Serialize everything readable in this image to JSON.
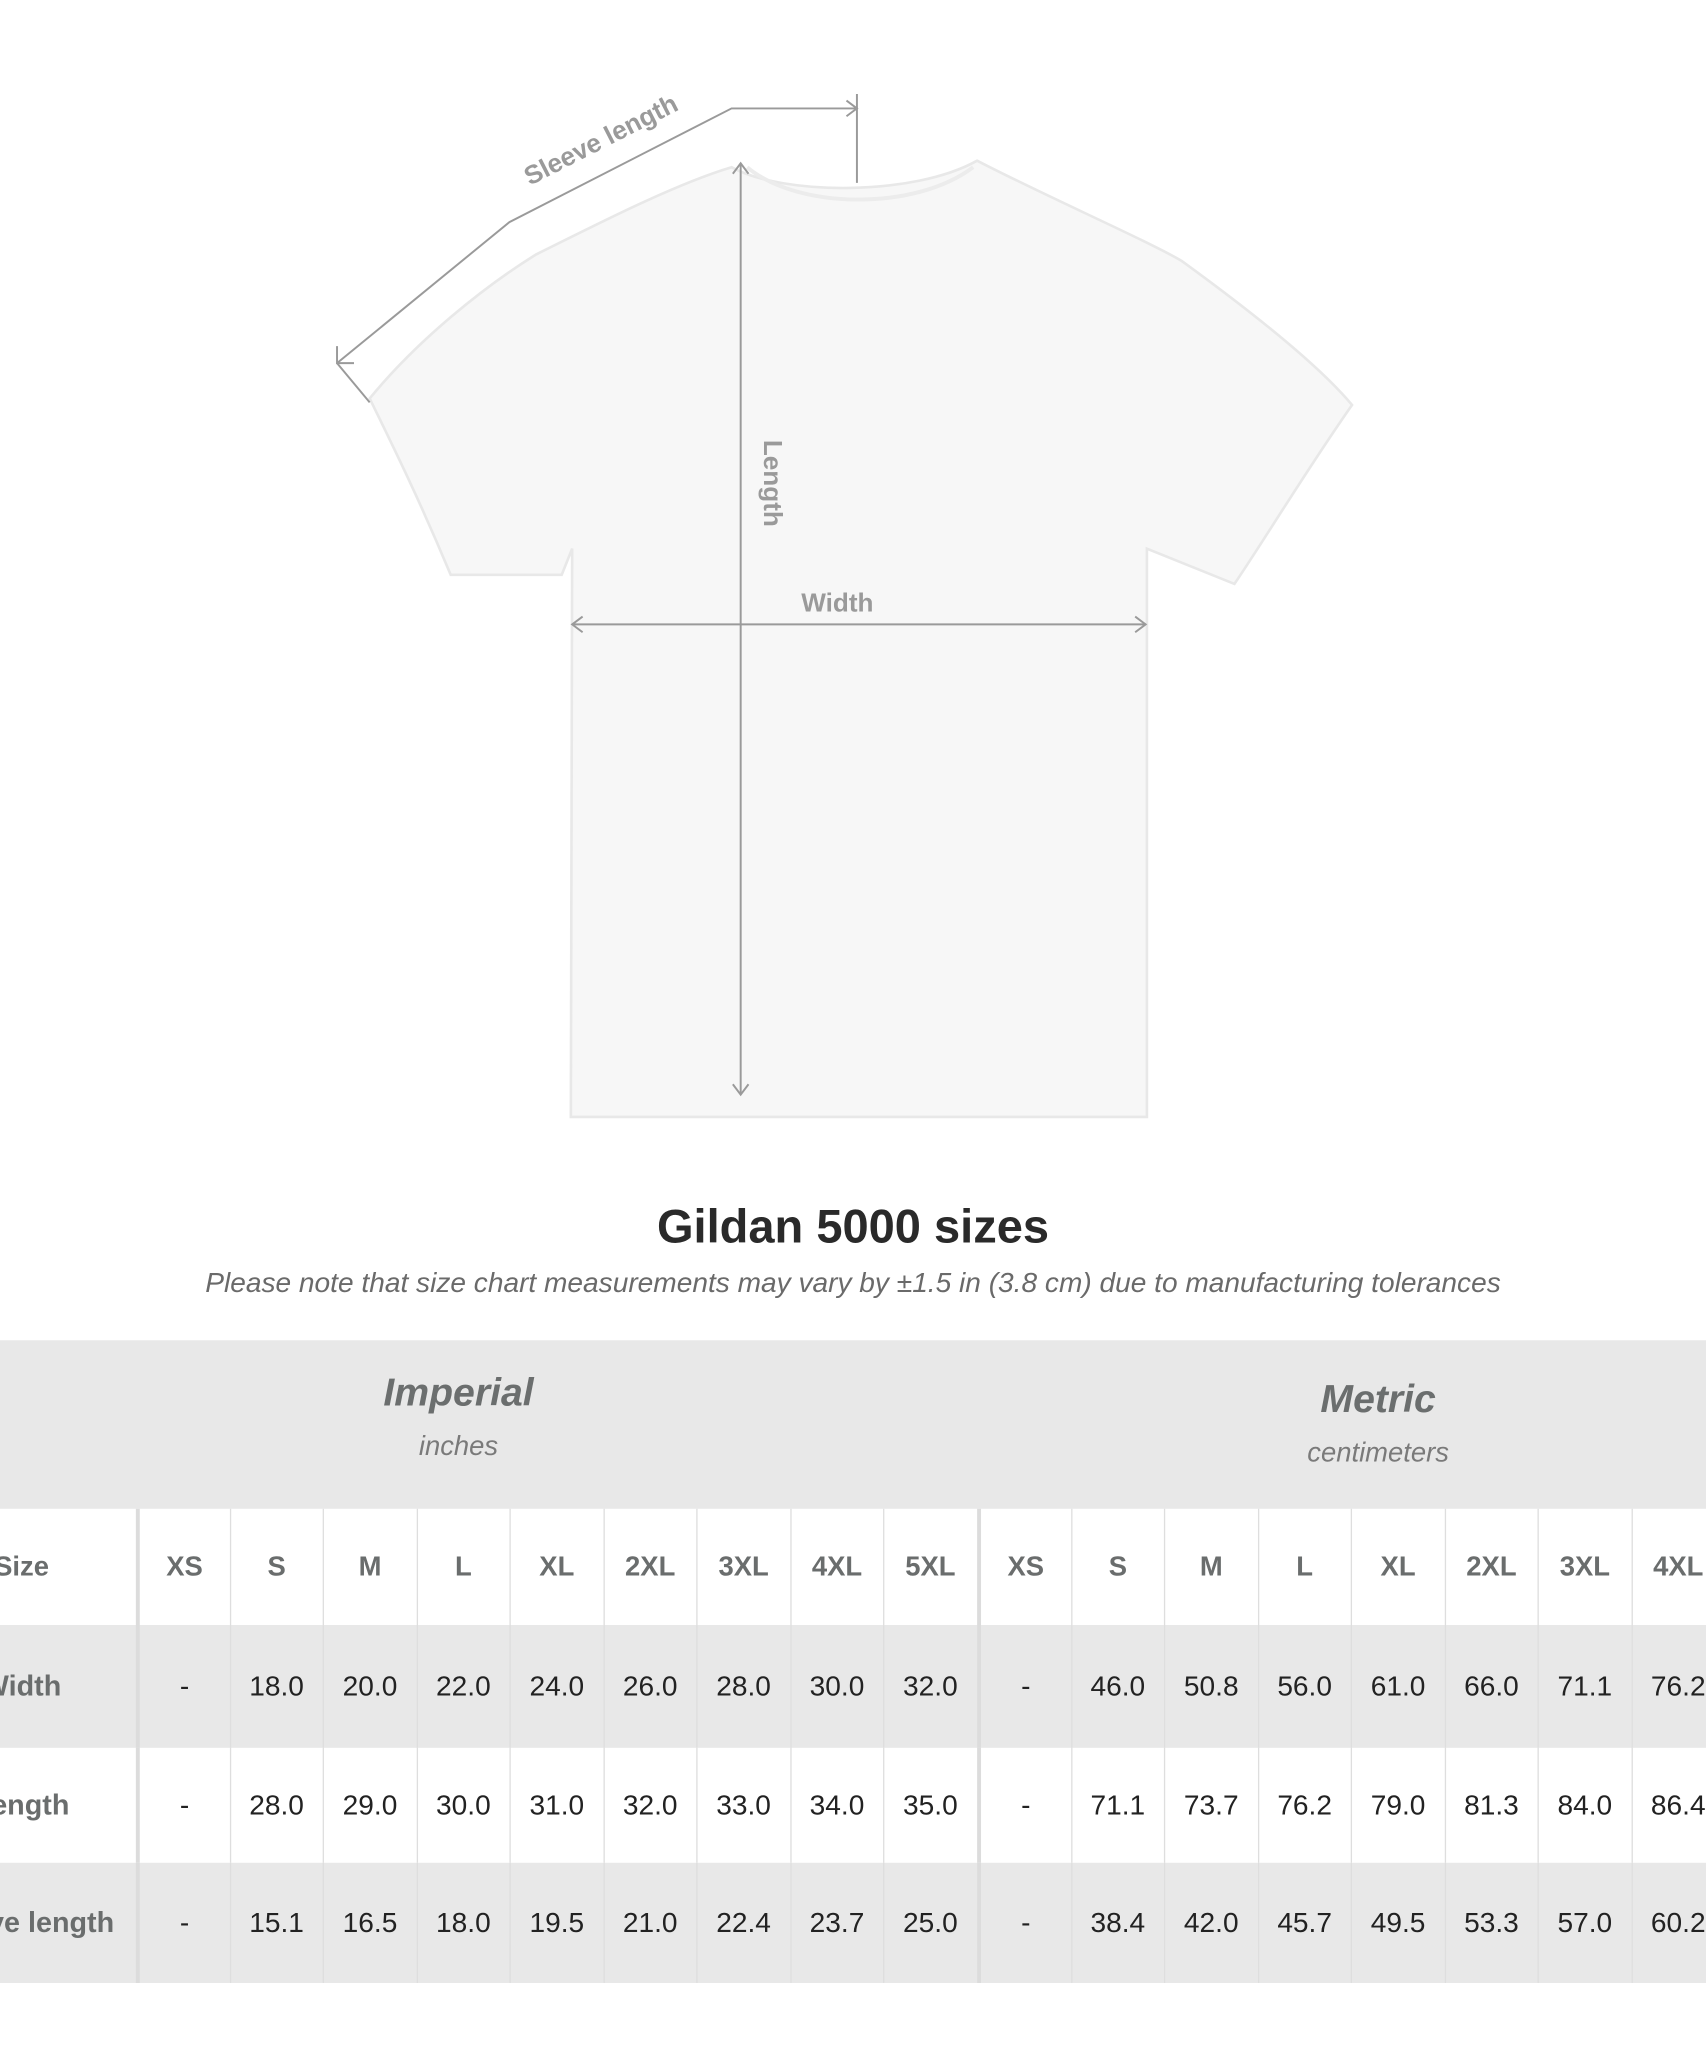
{
  "diagram": {
    "labels": {
      "sleeve": "Sleeve length",
      "length": "Length",
      "width": "Width"
    },
    "colors": {
      "arrow": "#9a9a9a",
      "shirt": "#f7f7f7",
      "shirt_edge": "#e6e6e6"
    }
  },
  "header": {
    "title": "Gildan 5000 sizes",
    "note": "Please note that size chart measurements may vary by ±1.5 in (3.8 cm) due to manufacturing tolerances"
  },
  "table": {
    "imperial": {
      "name": "Imperial",
      "unit": "inches",
      "sizes": [
        "XS",
        "S",
        "M",
        "L",
        "XL",
        "2XL",
        "3XL",
        "4XL",
        "5XL"
      ]
    },
    "metric": {
      "name": "Metric",
      "unit": "centimeters",
      "sizes": [
        "XS",
        "S",
        "M",
        "L",
        "XL",
        "2XL",
        "3XL",
        "4XL"
      ]
    },
    "size_label": "Size",
    "rows": [
      {
        "label": "Width",
        "imperial": [
          "-",
          "18.0",
          "20.0",
          "22.0",
          "24.0",
          "26.0",
          "28.0",
          "30.0",
          "32.0"
        ],
        "metric": [
          "-",
          "46.0",
          "50.8",
          "56.0",
          "61.0",
          "66.0",
          "71.1",
          "76.2"
        ]
      },
      {
        "label": "Length",
        "imperial": [
          "-",
          "28.0",
          "29.0",
          "30.0",
          "31.0",
          "32.0",
          "33.0",
          "34.0",
          "35.0"
        ],
        "metric": [
          "-",
          "71.1",
          "73.7",
          "76.2",
          "79.0",
          "81.3",
          "84.0",
          "86.4"
        ]
      },
      {
        "label": "Sleeve length",
        "imperial": [
          "-",
          "15.1",
          "16.5",
          "18.0",
          "19.5",
          "21.0",
          "22.4",
          "23.7",
          "25.0"
        ],
        "metric": [
          "-",
          "38.4",
          "42.0",
          "45.7",
          "49.5",
          "53.3",
          "57.0",
          "60.2"
        ]
      }
    ]
  }
}
